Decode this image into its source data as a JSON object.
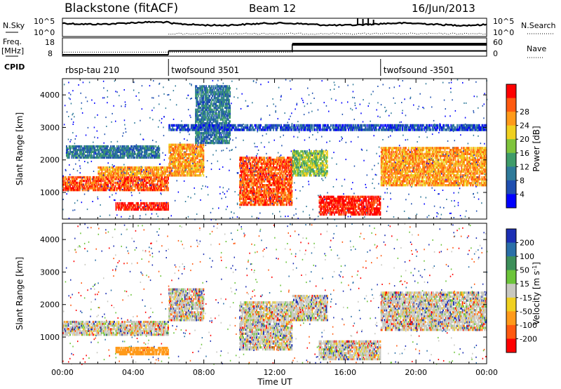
{
  "header": {
    "title_left": "Blackstone (fitACF)",
    "title_center": "Beam 12",
    "title_right": "16/Jun/2013"
  },
  "noise_panel": {
    "left_label": "N.Sky",
    "right_label": "N.Search",
    "left_tick_top": "10^5",
    "left_tick_bottom": "10^0",
    "right_tick_top": "10^5",
    "right_tick_bottom": "10^0"
  },
  "freq_panel": {
    "left_label_1": "Freq.",
    "left_label_2": "[MHz]",
    "left_ticks": [
      "18",
      "8"
    ],
    "right_label": "Nave",
    "right_ticks": [
      "60",
      "0"
    ],
    "freq_segments": [
      {
        "start_hour": 0,
        "end_hour": 6,
        "value": 8
      },
      {
        "start_hour": 6,
        "end_hour": 13,
        "value": 10.3
      },
      {
        "start_hour": 13,
        "end_hour": 24,
        "value": 10.3
      }
    ],
    "nave_segments": [
      {
        "start_hour": 0,
        "end_hour": 13,
        "value": 12
      },
      {
        "start_hour": 13,
        "end_hour": 24,
        "value": 40
      }
    ]
  },
  "cpid": {
    "label": "CPID",
    "programs": [
      {
        "name": "rbsp-tau 210",
        "start_hour": 0
      },
      {
        "name": "twofsound 3501",
        "start_hour": 6
      },
      {
        "name": "twofsound -3501",
        "start_hour": 18
      }
    ]
  },
  "chart_data": [
    {
      "type": "heatmap",
      "title": "",
      "ylabel": "Slant Range [km]",
      "xlim": [
        0,
        24
      ],
      "ylim": [
        180,
        4500
      ],
      "yticks": [
        "1000",
        "2000",
        "3000",
        "4000"
      ],
      "colorbar": {
        "label": "Power [dB]",
        "ticks": [
          "4",
          "8",
          "12",
          "16",
          "20",
          "24",
          "28"
        ],
        "colors": [
          "#0000ff",
          "#1f4fb0",
          "#2f7a9a",
          "#3f9c6a",
          "#7fc43c",
          "#f0d020",
          "#ff9a1a",
          "#ff5a10",
          "#ff0000"
        ]
      },
      "bands": [
        {
          "t0": 0,
          "t1": 6,
          "r0": 1050,
          "r1": 1500,
          "level": 7
        },
        {
          "t0": 0.2,
          "t1": 5.5,
          "r0": 2050,
          "r1": 2450,
          "level": 2
        },
        {
          "t0": 2.0,
          "t1": 6,
          "r0": 1500,
          "r1": 1800,
          "level": 6
        },
        {
          "t0": 3.0,
          "t1": 6,
          "r0": 450,
          "r1": 700,
          "level": 8
        },
        {
          "t0": 6,
          "t1": 8,
          "r0": 1500,
          "r1": 2500,
          "level": 6
        },
        {
          "t0": 7.5,
          "t1": 9.5,
          "r0": 2500,
          "r1": 4300,
          "level": 2
        },
        {
          "t0": 10,
          "t1": 13,
          "r0": 600,
          "r1": 2100,
          "level": 7
        },
        {
          "t0": 13,
          "t1": 15,
          "r0": 1500,
          "r1": 2300,
          "level": 4
        },
        {
          "t0": 14.5,
          "t1": 18,
          "r0": 300,
          "r1": 900,
          "level": 8
        },
        {
          "t0": 18,
          "t1": 24,
          "r0": 1200,
          "r1": 2400,
          "level": 6
        },
        {
          "t0": 6,
          "t1": 24,
          "r0": 2900,
          "r1": 3100,
          "level": 1
        }
      ]
    },
    {
      "type": "heatmap",
      "title": "",
      "xlabel": "Time UT",
      "ylabel": "Slant Range [km]",
      "xlim": [
        0,
        24
      ],
      "ylim": [
        180,
        4500
      ],
      "xticks": [
        "00:00",
        "04:00",
        "08:00",
        "12:00",
        "16:00",
        "20:00",
        "00:00"
      ],
      "yticks": [
        "1000",
        "2000",
        "3000",
        "4000"
      ],
      "colorbar": {
        "label": "Velocity [m s^-1]",
        "ticks": [
          "200",
          "100",
          "50",
          "15",
          "-15",
          "-50",
          "-100",
          "-200"
        ],
        "colors": [
          "#1c2fb4",
          "#2a6fa8",
          "#3d8f5a",
          "#6cc43a",
          "#c8c8c0",
          "#f0d020",
          "#ff9a1a",
          "#ff5a10",
          "#ff0000"
        ]
      },
      "bands": [
        {
          "t0": 0,
          "t1": 6,
          "r0": 1050,
          "r1": 1500,
          "level": 4
        },
        {
          "t0": 3.0,
          "t1": 6,
          "r0": 450,
          "r1": 700,
          "level": 6
        },
        {
          "t0": 6,
          "t1": 8,
          "r0": 1500,
          "r1": 2500,
          "level": 4
        },
        {
          "t0": 10,
          "t1": 13,
          "r0": 600,
          "r1": 2100,
          "level": 4
        },
        {
          "t0": 13,
          "t1": 15,
          "r0": 1500,
          "r1": 2300,
          "level": 4
        },
        {
          "t0": 14.5,
          "t1": 18,
          "r0": 300,
          "r1": 900,
          "level": 4
        },
        {
          "t0": 18,
          "t1": 24,
          "r0": 1200,
          "r1": 2400,
          "level": 4
        }
      ]
    }
  ]
}
